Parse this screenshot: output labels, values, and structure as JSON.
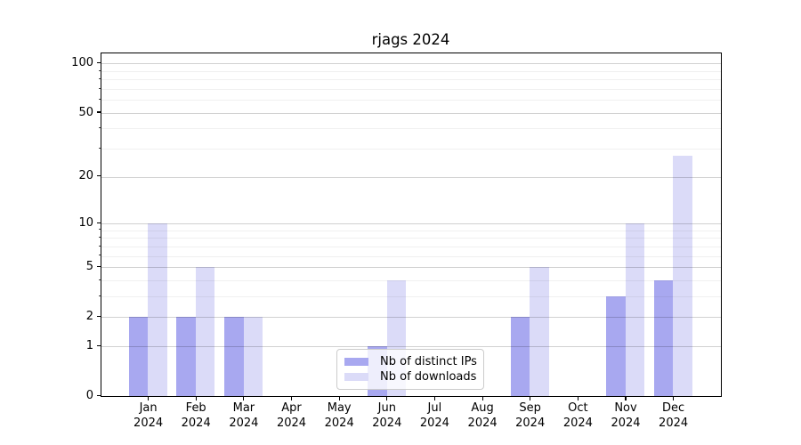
{
  "title": "rjags 2024",
  "legend": {
    "items": [
      {
        "label": "Nb of distinct IPs",
        "color": "#a8a8f0"
      },
      {
        "label": "Nb of downloads",
        "color": "#dbdbf8"
      }
    ]
  },
  "chart_data": {
    "type": "bar",
    "title": "rjags 2024",
    "categories": [
      "Jan 2024",
      "Feb 2024",
      "Mar 2024",
      "Apr 2024",
      "May 2024",
      "Jun 2024",
      "Jul 2024",
      "Aug 2024",
      "Sep 2024",
      "Oct 2024",
      "Nov 2024",
      "Dec 2024"
    ],
    "x_tick_month": [
      "Jan",
      "Feb",
      "Mar",
      "Apr",
      "May",
      "Jun",
      "Jul",
      "Aug",
      "Sep",
      "Oct",
      "Nov",
      "Dec"
    ],
    "x_tick_year": "2024",
    "series": [
      {
        "name": "Nb of distinct IPs",
        "color": "#a8a8f0",
        "values": [
          2,
          2,
          2,
          0,
          0,
          1,
          0,
          0,
          2,
          0,
          3,
          4
        ]
      },
      {
        "name": "Nb of downloads",
        "color": "#dbdbf8",
        "values": [
          10,
          5,
          2,
          0,
          0,
          4,
          0,
          0,
          5,
          0,
          10,
          27
        ]
      }
    ],
    "xlabel": "",
    "ylabel": "",
    "yaxis": {
      "scale": "log1p",
      "major_ticks": [
        0,
        1,
        2,
        5,
        10,
        20,
        50,
        100
      ],
      "minor_gridlines": [
        3,
        4,
        6,
        7,
        8,
        9,
        30,
        40,
        60,
        70,
        80,
        90
      ],
      "ylim": [
        0,
        115
      ]
    },
    "grid": true,
    "legend_position": "lower center"
  }
}
